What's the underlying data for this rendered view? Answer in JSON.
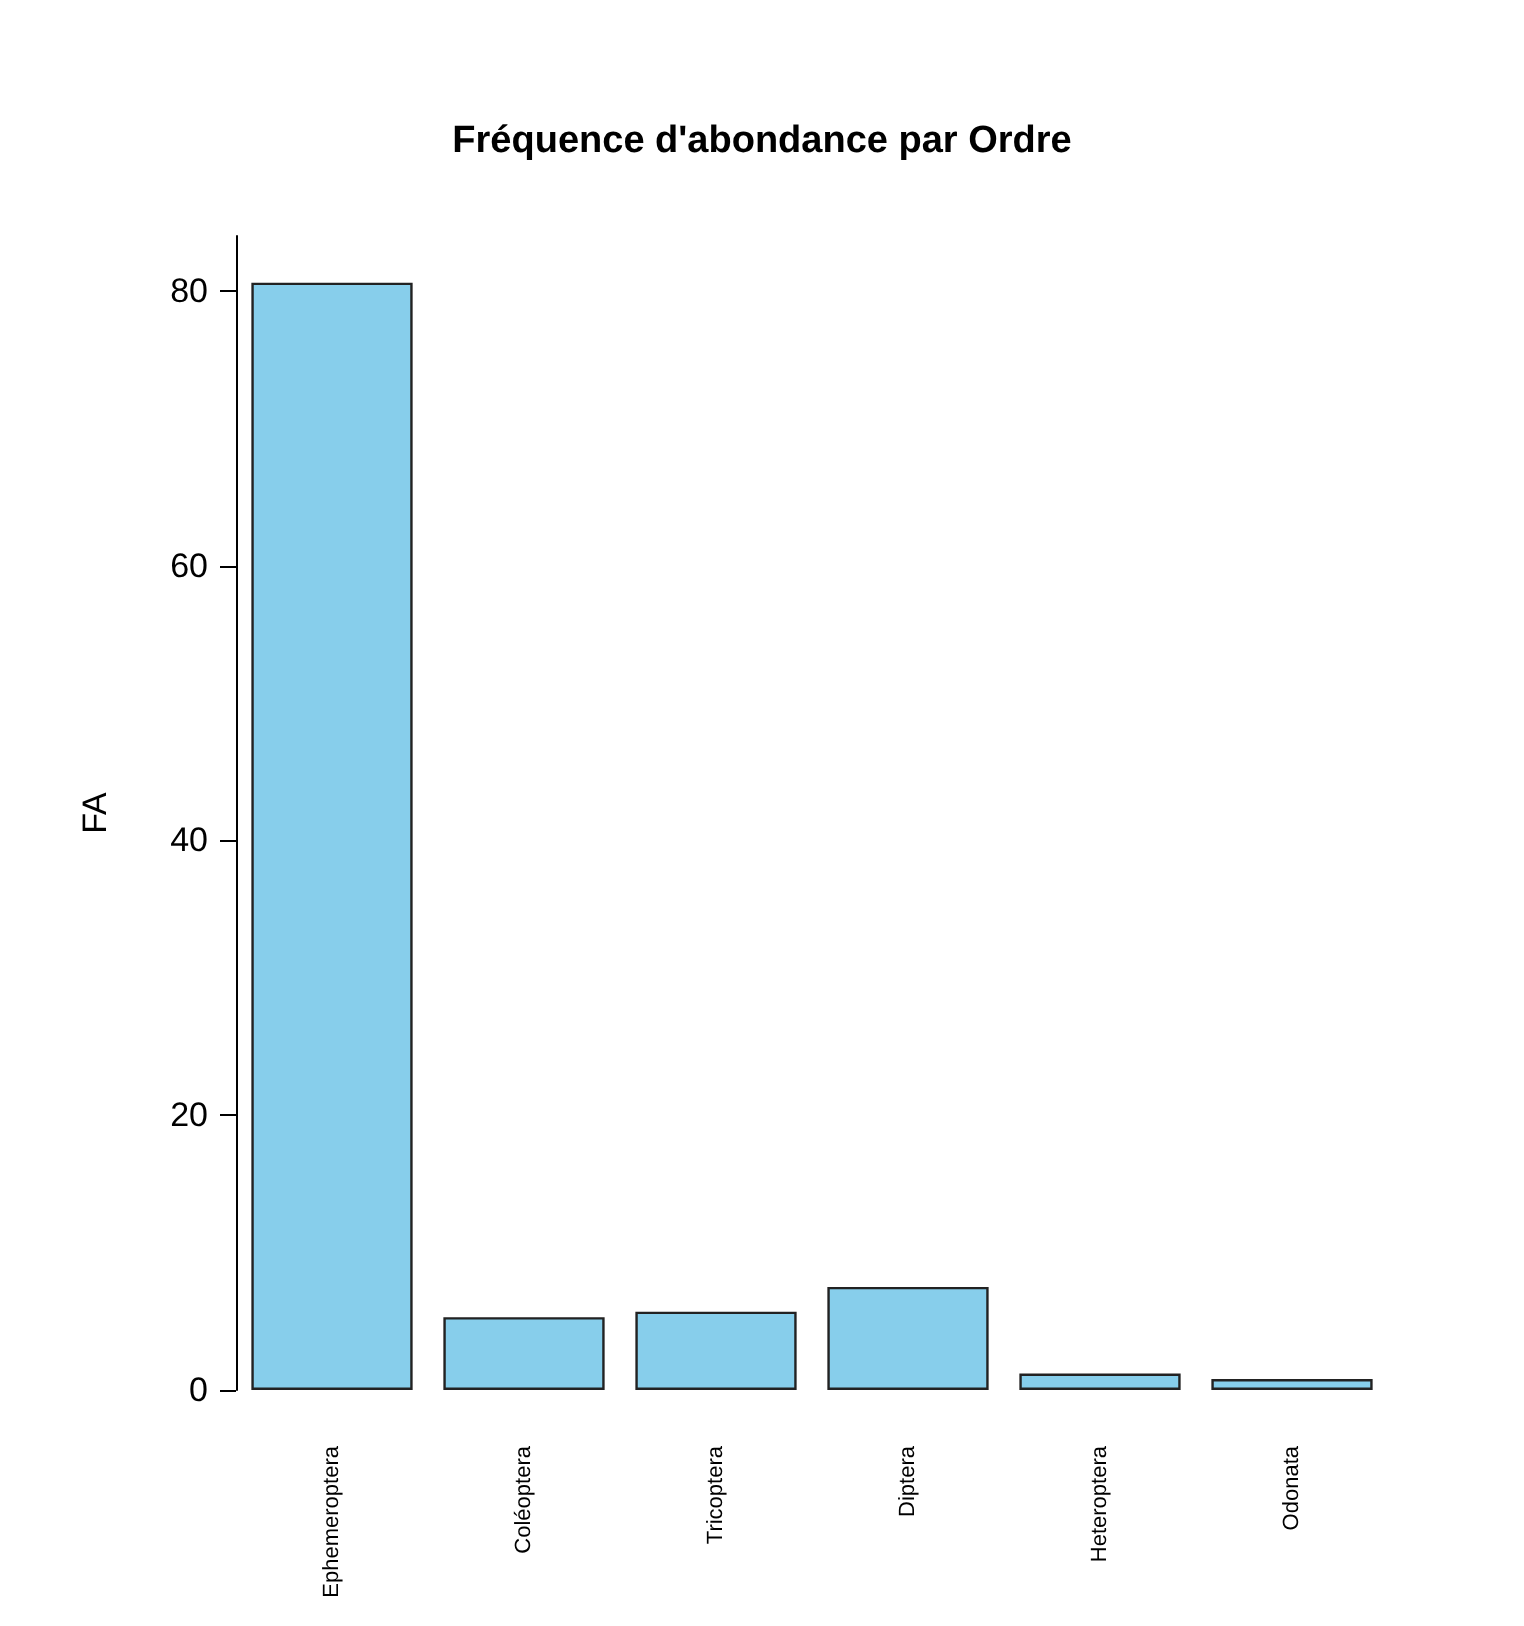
{
  "chart_data": {
    "type": "bar",
    "title": "Fréquence d'abondance par Ordre",
    "ylabel": "FA",
    "categories": [
      "Ephemeroptera",
      "Coléoptera",
      "Tricoptera",
      "Diptera",
      "Heteroptera",
      "Odonata"
    ],
    "values": [
      80.6,
      5.3,
      5.7,
      7.5,
      1.2,
      0.8
    ],
    "color": "#87ceeb",
    "ylim": [
      0,
      84
    ],
    "yticks": [
      0,
      20,
      40,
      60,
      80
    ],
    "grid": false
  }
}
